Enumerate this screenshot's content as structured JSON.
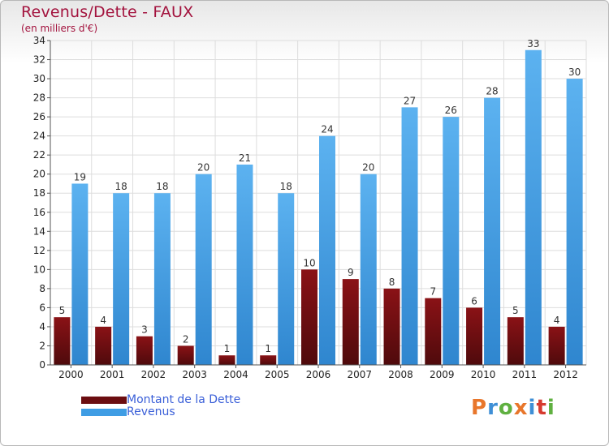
{
  "header": {
    "title": "Revenus/Dette - FAUX",
    "subtitle": "(en milliers d'€)"
  },
  "colors": {
    "dette": "#6b0d10",
    "revenus": "#3f9de4",
    "title": "#a3133e",
    "legend_text": "#3a5fd8"
  },
  "chart_data": {
    "type": "bar",
    "title": "Revenus/Dette - FAUX",
    "subtitle": "(en milliers d'€)",
    "xlabel": "",
    "ylabel": "",
    "ylim": [
      0,
      34
    ],
    "yticks": [
      0,
      2,
      4,
      6,
      8,
      10,
      12,
      14,
      16,
      18,
      20,
      22,
      24,
      26,
      28,
      30,
      32,
      34
    ],
    "grid": true,
    "categories": [
      "2000",
      "2001",
      "2002",
      "2003",
      "2004",
      "2005",
      "2006",
      "2007",
      "2008",
      "2009",
      "2010",
      "2011",
      "2012"
    ],
    "series": [
      {
        "name": "Montant de la Dette",
        "color": "#6b0d10",
        "values": [
          5,
          4,
          3,
          2,
          1,
          1,
          10,
          9,
          8,
          7,
          6,
          5,
          4
        ]
      },
      {
        "name": "Revenus",
        "color": "#3f9de4",
        "values": [
          19,
          18,
          18,
          20,
          21,
          18,
          24,
          20,
          27,
          26,
          28,
          33,
          30
        ]
      }
    ],
    "legend_position": "bottom-left"
  },
  "legend": {
    "items": [
      {
        "label": "Montant de la Dette"
      },
      {
        "label": "Revenus"
      }
    ]
  },
  "logo": {
    "letters": [
      "P",
      "r",
      "o",
      "x",
      "i",
      "t",
      "i"
    ],
    "colors": [
      "#e8762b",
      "#3e8fd6",
      "#5fb040",
      "#e8762b",
      "#3e8fd6",
      "#d63a2f",
      "#5fb040"
    ]
  }
}
